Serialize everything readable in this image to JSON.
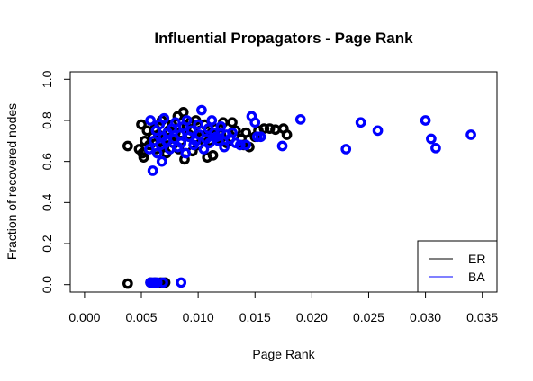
{
  "chart_data": {
    "type": "scatter",
    "title": "Influential Propagators - Page Rank",
    "xlabel": "Page Rank",
    "ylabel": "Fraction of recovered nodes",
    "xlim": [
      0.0,
      0.035
    ],
    "ylim": [
      0.0,
      1.0
    ],
    "xticks": [
      "0.000",
      "0.005",
      "0.010",
      "0.015",
      "0.020",
      "0.025",
      "0.030",
      "0.035"
    ],
    "xtick_values": [
      0.0,
      0.005,
      0.01,
      0.015,
      0.02,
      0.025,
      0.03,
      0.035
    ],
    "yticks": [
      "0.0",
      "0.2",
      "0.4",
      "0.6",
      "0.8",
      "1.0"
    ],
    "ytick_values": [
      0.0,
      0.2,
      0.4,
      0.6,
      0.8,
      1.0
    ],
    "grid": false,
    "legend_position": "bottom-right",
    "series": [
      {
        "name": "ER",
        "color": "#000000",
        "points": [
          [
            0.0038,
            0.675
          ],
          [
            0.0048,
            0.66
          ],
          [
            0.005,
            0.78
          ],
          [
            0.0051,
            0.64
          ],
          [
            0.0052,
            0.62
          ],
          [
            0.0053,
            0.7
          ],
          [
            0.0055,
            0.75
          ],
          [
            0.0057,
            0.68
          ],
          [
            0.006,
            0.72
          ],
          [
            0.0062,
            0.76
          ],
          [
            0.0063,
            0.66
          ],
          [
            0.0065,
            0.73
          ],
          [
            0.0067,
            0.7
          ],
          [
            0.0068,
            0.8
          ],
          [
            0.007,
            0.67
          ],
          [
            0.0072,
            0.64
          ],
          [
            0.0074,
            0.75
          ],
          [
            0.0075,
            0.71
          ],
          [
            0.0077,
            0.78
          ],
          [
            0.0078,
            0.69
          ],
          [
            0.008,
            0.74
          ],
          [
            0.0082,
            0.82
          ],
          [
            0.0083,
            0.66
          ],
          [
            0.0085,
            0.7
          ],
          [
            0.0087,
            0.84
          ],
          [
            0.0088,
            0.61
          ],
          [
            0.009,
            0.77
          ],
          [
            0.0092,
            0.73
          ],
          [
            0.0093,
            0.79
          ],
          [
            0.0095,
            0.65
          ],
          [
            0.0097,
            0.71
          ],
          [
            0.0098,
            0.8
          ],
          [
            0.01,
            0.68
          ],
          [
            0.0102,
            0.75
          ],
          [
            0.0104,
            0.72
          ],
          [
            0.0106,
            0.78
          ],
          [
            0.0108,
            0.62
          ],
          [
            0.011,
            0.7
          ],
          [
            0.0112,
            0.74
          ],
          [
            0.0113,
            0.63
          ],
          [
            0.0115,
            0.76
          ],
          [
            0.0118,
            0.71
          ],
          [
            0.012,
            0.73
          ],
          [
            0.0122,
            0.79
          ],
          [
            0.0125,
            0.69
          ],
          [
            0.013,
            0.79
          ],
          [
            0.0133,
            0.75
          ],
          [
            0.0138,
            0.71
          ],
          [
            0.014,
            0.68
          ],
          [
            0.0142,
            0.74
          ],
          [
            0.0145,
            0.67
          ],
          [
            0.015,
            0.72
          ],
          [
            0.0153,
            0.75
          ],
          [
            0.0158,
            0.76
          ],
          [
            0.0163,
            0.76
          ],
          [
            0.0168,
            0.755
          ],
          [
            0.0175,
            0.76
          ],
          [
            0.0178,
            0.73
          ],
          [
            0.0038,
            0.005
          ],
          [
            0.0058,
            0.01
          ],
          [
            0.0062,
            0.01
          ],
          [
            0.0067,
            0.01
          ],
          [
            0.0071,
            0.01
          ]
        ]
      },
      {
        "name": "BA",
        "color": "#0000ff",
        "points": [
          [
            0.0057,
            0.66
          ],
          [
            0.0058,
            0.8
          ],
          [
            0.006,
            0.555
          ],
          [
            0.0061,
            0.7
          ],
          [
            0.0063,
            0.75
          ],
          [
            0.0064,
            0.64
          ],
          [
            0.0066,
            0.78
          ],
          [
            0.0067,
            0.68
          ],
          [
            0.0068,
            0.6
          ],
          [
            0.0069,
            0.72
          ],
          [
            0.007,
            0.81
          ],
          [
            0.0072,
            0.7
          ],
          [
            0.0073,
            0.74
          ],
          [
            0.0075,
            0.66
          ],
          [
            0.0077,
            0.76
          ],
          [
            0.0079,
            0.71
          ],
          [
            0.008,
            0.79
          ],
          [
            0.0082,
            0.67
          ],
          [
            0.0084,
            0.73
          ],
          [
            0.0085,
            0.69
          ],
          [
            0.0087,
            0.77
          ],
          [
            0.0089,
            0.64
          ],
          [
            0.009,
            0.8
          ],
          [
            0.0092,
            0.72
          ],
          [
            0.0094,
            0.75
          ],
          [
            0.0096,
            0.68
          ],
          [
            0.0098,
            0.7
          ],
          [
            0.01,
            0.78
          ],
          [
            0.0101,
            0.73
          ],
          [
            0.0103,
            0.85
          ],
          [
            0.0105,
            0.66
          ],
          [
            0.0107,
            0.71
          ],
          [
            0.0109,
            0.76
          ],
          [
            0.011,
            0.69
          ],
          [
            0.0112,
            0.8
          ],
          [
            0.0114,
            0.74
          ],
          [
            0.0116,
            0.72
          ],
          [
            0.0118,
            0.7
          ],
          [
            0.012,
            0.77
          ],
          [
            0.0123,
            0.67
          ],
          [
            0.0125,
            0.73
          ],
          [
            0.0128,
            0.71
          ],
          [
            0.013,
            0.74
          ],
          [
            0.0133,
            0.69
          ],
          [
            0.0137,
            0.68
          ],
          [
            0.0142,
            0.68
          ],
          [
            0.0147,
            0.82
          ],
          [
            0.015,
            0.79
          ],
          [
            0.0152,
            0.72
          ],
          [
            0.0155,
            0.72
          ],
          [
            0.0174,
            0.675
          ],
          [
            0.019,
            0.805
          ],
          [
            0.023,
            0.66
          ],
          [
            0.0243,
            0.79
          ],
          [
            0.0258,
            0.75
          ],
          [
            0.03,
            0.8
          ],
          [
            0.0305,
            0.71
          ],
          [
            0.0309,
            0.665
          ],
          [
            0.034,
            0.73
          ],
          [
            0.0058,
            0.01
          ],
          [
            0.006,
            0.01
          ],
          [
            0.0062,
            0.01
          ],
          [
            0.0064,
            0.01
          ],
          [
            0.0069,
            0.01
          ],
          [
            0.0085,
            0.01
          ]
        ]
      }
    ]
  }
}
